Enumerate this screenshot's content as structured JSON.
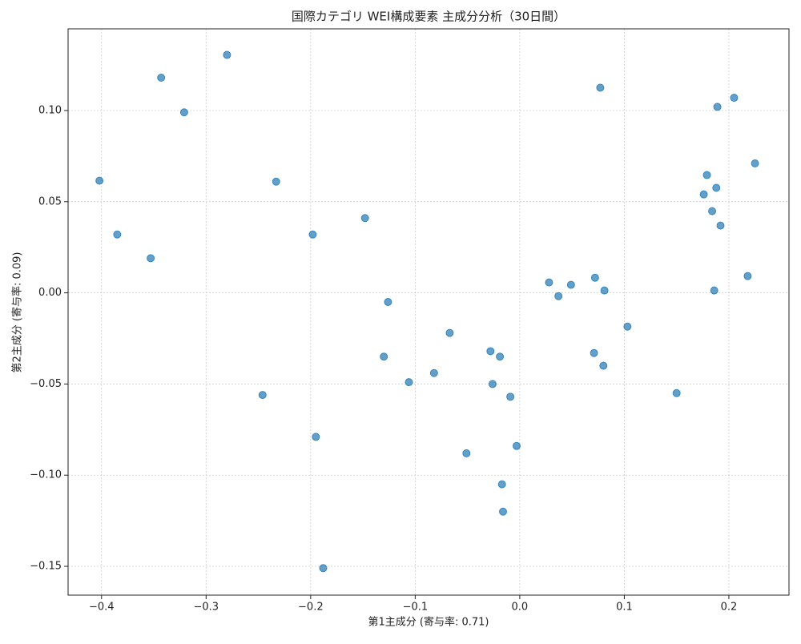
{
  "chart_data": {
    "type": "scatter",
    "title": "国際カテゴリ WEI構成要素 主成分分析（30日間）",
    "x_label": "第1主成分 (寄与率: 0.71)",
    "y_label": "第2主成分 (寄与率: 0.09)",
    "color": "#1f77b4",
    "grid": true,
    "xlim": [
      -0.432,
      0.2575
    ],
    "ylim": [
      -0.1658,
      0.1448
    ],
    "xticks": [
      {
        "value": -0.4,
        "label": "−0.4"
      },
      {
        "value": -0.3,
        "label": "−0.3"
      },
      {
        "value": -0.2,
        "label": "−0.2"
      },
      {
        "value": -0.1,
        "label": "−0.1"
      },
      {
        "value": 0,
        "label": "0.0"
      },
      0.1,
      0.2
    ],
    "yticks": [
      {
        "value": -0.15,
        "label": "−0.15"
      },
      {
        "value": -0.1,
        "label": "−0.10"
      },
      {
        "value": -0.05,
        "label": "−0.05"
      },
      {
        "value": 0,
        "label": "0.00"
      },
      0.05,
      {
        "value": 0.1,
        "label": "0.10"
      }
    ],
    "x": [
      -0.28,
      -0.343,
      -0.321,
      -0.402,
      -0.233,
      -0.385,
      -0.353,
      -0.198,
      -0.148,
      -0.126,
      -0.067,
      -0.13,
      -0.106,
      -0.082,
      -0.246,
      -0.195,
      -0.188,
      -0.051,
      -0.028,
      -0.019,
      -0.026,
      -0.009,
      -0.003,
      -0.017,
      -0.016,
      0.028,
      0.037,
      0.049,
      0.072,
      0.081,
      0.103,
      0.071,
      0.08,
      0.077,
      0.15,
      0.189,
      0.205,
      0.225,
      0.179,
      0.188,
      0.176,
      0.184,
      0.192,
      0.186,
      0.218
    ],
    "values": [
      0.1305,
      0.118,
      0.099,
      0.0615,
      0.061,
      0.032,
      0.019,
      0.032,
      0.041,
      -0.005,
      -0.022,
      -0.035,
      -0.049,
      -0.044,
      -0.056,
      -0.079,
      -0.151,
      -0.088,
      -0.032,
      -0.035,
      -0.05,
      -0.057,
      -0.084,
      -0.105,
      -0.12,
      0.0057,
      -0.0018,
      0.0044,
      0.0083,
      0.0013,
      -0.0185,
      -0.033,
      -0.04,
      0.1125,
      -0.055,
      0.102,
      0.107,
      0.071,
      0.0646,
      0.0576,
      0.054,
      0.0448,
      0.0369,
      0.0013,
      0.0092
    ]
  }
}
